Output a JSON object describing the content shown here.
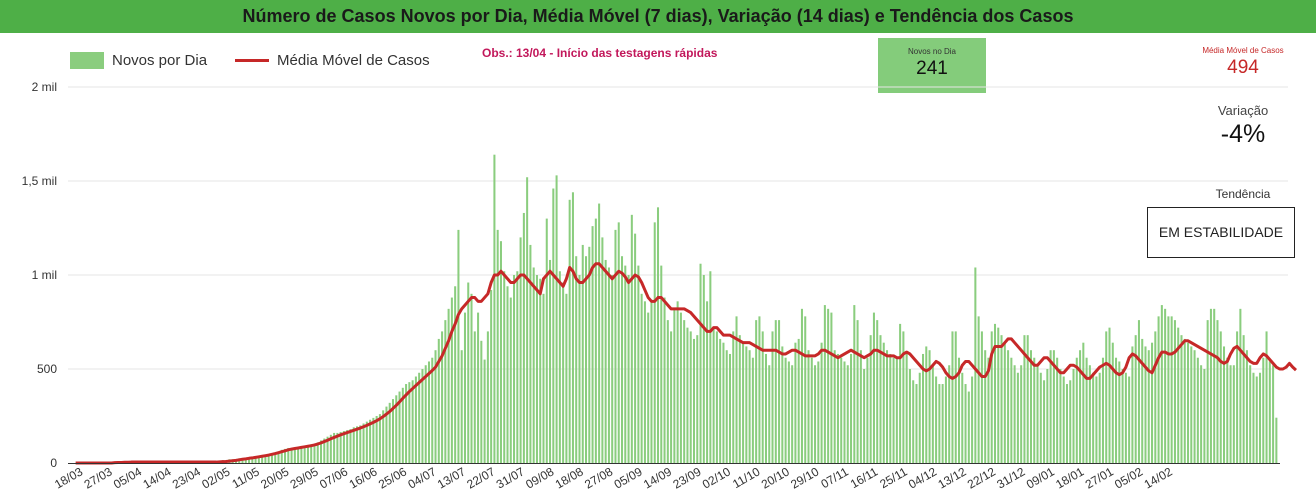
{
  "header": {
    "title": "Número de Casos Novos por Dia, Média Móvel (7 dias), Variação (14 dias) e Tendência dos Casos"
  },
  "legend": {
    "bars_label": "Novos por Dia",
    "line_label": "Média Móvel de Casos"
  },
  "note": "Obs.: 13/04 - Início das testagens rápidas",
  "kpis": {
    "novos_dia_label": "Novos no Dia",
    "novos_dia_value": "241",
    "media_movel_label": "Média Móvel de Casos",
    "media_movel_value": "494",
    "variacao_label": "Variação",
    "variacao_value": "-4%",
    "tendencia_label": "Tendência",
    "tendencia_value": "EM ESTABILIDADE"
  },
  "colors": {
    "bars": "#8acd7e",
    "line": "#c62828",
    "header": "#4eaf47",
    "note": "#c2185b"
  },
  "chart_data": {
    "type": "bar",
    "title": "Número de Casos Novos por Dia, Média Móvel (7 dias), Variação (14 dias) e Tendência dos Casos",
    "ylim": [
      0,
      2000
    ],
    "ytick_values": [
      0,
      500,
      1000,
      1500,
      2000
    ],
    "ytick_labels": [
      "0",
      "500",
      "1 mil",
      "1,5 mil",
      "2 mil"
    ],
    "xtick_labels": [
      "18/03",
      "27/03",
      "05/04",
      "14/04",
      "23/04",
      "02/05",
      "11/05",
      "20/05",
      "29/05",
      "07/06",
      "16/06",
      "25/06",
      "04/07",
      "13/07",
      "22/07",
      "31/07",
      "09/08",
      "18/08",
      "27/08",
      "05/09",
      "14/09",
      "23/09",
      "02/10",
      "11/10",
      "20/10",
      "29/10",
      "07/11",
      "16/11",
      "25/11",
      "04/12",
      "13/12",
      "22/12",
      "31/12",
      "09/01",
      "18/01",
      "27/01",
      "05/02",
      "14/02"
    ],
    "days_per_tick": 9,
    "grid": true,
    "legend_position": "top-left",
    "series": [
      {
        "name": "Novos por Dia",
        "kind": "bar",
        "values": [
          0,
          0,
          0,
          0,
          0,
          0,
          0,
          0,
          0,
          0,
          0,
          0,
          5,
          5,
          5,
          5,
          5,
          5,
          5,
          5,
          5,
          5,
          5,
          5,
          5,
          5,
          5,
          5,
          5,
          5,
          5,
          5,
          5,
          5,
          5,
          5,
          5,
          5,
          5,
          5,
          5,
          5,
          5,
          5,
          10,
          15,
          15,
          20,
          20,
          20,
          25,
          25,
          25,
          30,
          30,
          35,
          35,
          40,
          40,
          45,
          50,
          55,
          60,
          70,
          75,
          80,
          80,
          80,
          85,
          90,
          90,
          95,
          100,
          100,
          110,
          120,
          130,
          140,
          150,
          160,
          160,
          165,
          170,
          175,
          180,
          190,
          195,
          200,
          210,
          220,
          230,
          240,
          250,
          260,
          280,
          300,
          320,
          340,
          360,
          380,
          400,
          420,
          430,
          440,
          460,
          480,
          500,
          520,
          540,
          560,
          600,
          660,
          700,
          760,
          820,
          880,
          940,
          1240,
          600,
          800,
          960,
          900,
          700,
          800,
          650,
          550,
          700,
          920,
          1640,
          1240,
          1180,
          1020,
          940,
          880,
          1000,
          1020,
          1200,
          1330,
          1520,
          1160,
          1040,
          1000,
          980,
          900,
          1300,
          1080,
          1460,
          1530,
          1020,
          960,
          900,
          1400,
          1440,
          1100,
          1000,
          1160,
          1100,
          1150,
          1260,
          1300,
          1380,
          1200,
          1080,
          1040,
          1000,
          1240,
          1280,
          1100,
          1050,
          1000,
          1320,
          1220,
          1050,
          900,
          860,
          800,
          860,
          1280,
          1360,
          1050,
          880,
          760,
          700,
          820,
          860,
          800,
          760,
          720,
          700,
          660,
          680,
          1060,
          1000,
          860,
          1020,
          720,
          700,
          660,
          640,
          600,
          580,
          700,
          780,
          680,
          640,
          620,
          600,
          560,
          760,
          780,
          700,
          580,
          520,
          700,
          760,
          760,
          620,
          560,
          540,
          520,
          640,
          660,
          820,
          780,
          600,
          560,
          520,
          540,
          640,
          840,
          820,
          800,
          600,
          580,
          560,
          540,
          520,
          580,
          840,
          760,
          600,
          500,
          560,
          680,
          800,
          760,
          680,
          640,
          600,
          580,
          560,
          560,
          740,
          700,
          580,
          500,
          440,
          420,
          480,
          580,
          620,
          600,
          520,
          460,
          420,
          420,
          460,
          520,
          700,
          700,
          560,
          480,
          420,
          380,
          460,
          1040,
          780,
          700,
          600,
          560,
          700,
          740,
          720,
          680,
          640,
          600,
          560,
          520,
          480,
          520,
          680,
          680,
          600,
          560,
          520,
          480,
          440,
          500,
          600,
          600,
          560,
          500,
          460,
          420,
          440,
          500,
          560,
          600,
          640,
          560,
          520,
          480,
          460,
          480,
          560,
          700,
          720,
          640,
          560,
          540,
          500,
          480,
          460,
          620,
          680,
          760,
          660,
          620,
          600,
          640,
          700,
          780,
          840,
          820,
          780,
          780,
          760,
          720,
          680,
          660,
          640,
          620,
          600,
          560,
          520,
          500,
          760,
          820,
          820,
          760,
          700,
          620,
          560,
          520,
          520,
          700,
          820,
          680,
          600,
          520,
          480,
          460,
          480,
          560,
          700,
          540,
          520,
          241
        ]
      },
      {
        "name": "Média Móvel de Casos",
        "kind": "line",
        "values": [
          0,
          0,
          0,
          0,
          0,
          0,
          0,
          0,
          0,
          0,
          0,
          0,
          2,
          3,
          3,
          4,
          4,
          5,
          5,
          5,
          5,
          5,
          5,
          5,
          5,
          5,
          5,
          5,
          5,
          5,
          5,
          5,
          5,
          5,
          5,
          5,
          5,
          5,
          5,
          5,
          5,
          5,
          5,
          5,
          6,
          7,
          8,
          10,
          12,
          14,
          17,
          20,
          22,
          25,
          27,
          30,
          33,
          36,
          39,
          42,
          46,
          50,
          55,
          60,
          65,
          70,
          74,
          77,
          80,
          83,
          86,
          89,
          92,
          96,
          101,
          107,
          114,
          121,
          129,
          136,
          143,
          150,
          156,
          162,
          168,
          174,
          180,
          186,
          193,
          200,
          208,
          216,
          225,
          235,
          247,
          260,
          274,
          290,
          307,
          325,
          344,
          362,
          380,
          396,
          412,
          428,
          444,
          460,
          476,
          492,
          510,
          540,
          570,
          610,
          650,
          700,
          740,
          790,
          820,
          840,
          860,
          880,
          880,
          860,
          860,
          880,
          900,
          960,
          1000,
          1000,
          1020,
          1000,
          980,
          960,
          960,
          980,
          1000,
          1000,
          980,
          960,
          940,
          920,
          900,
          980,
          1000,
          1020,
          1000,
          980,
          960,
          940,
          980,
          1040,
          1020,
          980,
          960,
          960,
          980,
          1000,
          1040,
          1060,
          1060,
          1040,
          1020,
          1000,
          980,
          1000,
          1020,
          1010,
          990,
          960,
          980,
          1000,
          990,
          960,
          920,
          880,
          860,
          860,
          880,
          880,
          860,
          840,
          820,
          820,
          820,
          820,
          820,
          810,
          800,
          780,
          760,
          740,
          720,
          700,
          700,
          720,
          720,
          700,
          680,
          680,
          680,
          670,
          660,
          650,
          640,
          640,
          640,
          630,
          620,
          610,
          600,
          600,
          600,
          600,
          600,
          590,
          580,
          580,
          590,
          600,
          600,
          590,
          580,
          570,
          570,
          570,
          570,
          580,
          600,
          600,
          590,
          580,
          570,
          560,
          570,
          580,
          590,
          600,
          590,
          580,
          570,
          560,
          570,
          580,
          600,
          600,
          590,
          580,
          570,
          570,
          570,
          560,
          560,
          580,
          590,
          580,
          560,
          540,
          520,
          500,
          490,
          500,
          520,
          540,
          530,
          510,
          480,
          460,
          450,
          460,
          480,
          520,
          540,
          540,
          520,
          500,
          480,
          460,
          460,
          490,
          580,
          620,
          620,
          620,
          640,
          660,
          660,
          640,
          620,
          600,
          580,
          560,
          540,
          520,
          520,
          540,
          560,
          560,
          540,
          520,
          500,
          480,
          480,
          500,
          520,
          520,
          510,
          490,
          470,
          450,
          450,
          470,
          490,
          510,
          520,
          530,
          520,
          500,
          480,
          470,
          480,
          510,
          560,
          580,
          570,
          550,
          530,
          510,
          490,
          480,
          520,
          560,
          590,
          590,
          580,
          580,
          590,
          610,
          630,
          650,
          650,
          640,
          630,
          620,
          610,
          600,
          590,
          580,
          570,
          560,
          540,
          530,
          540,
          580,
          610,
          620,
          600,
          580,
          560,
          540,
          530,
          530,
          560,
          580,
          570,
          550,
          530,
          510,
          500,
          500,
          510,
          530,
          510,
          494
        ]
      }
    ]
  }
}
